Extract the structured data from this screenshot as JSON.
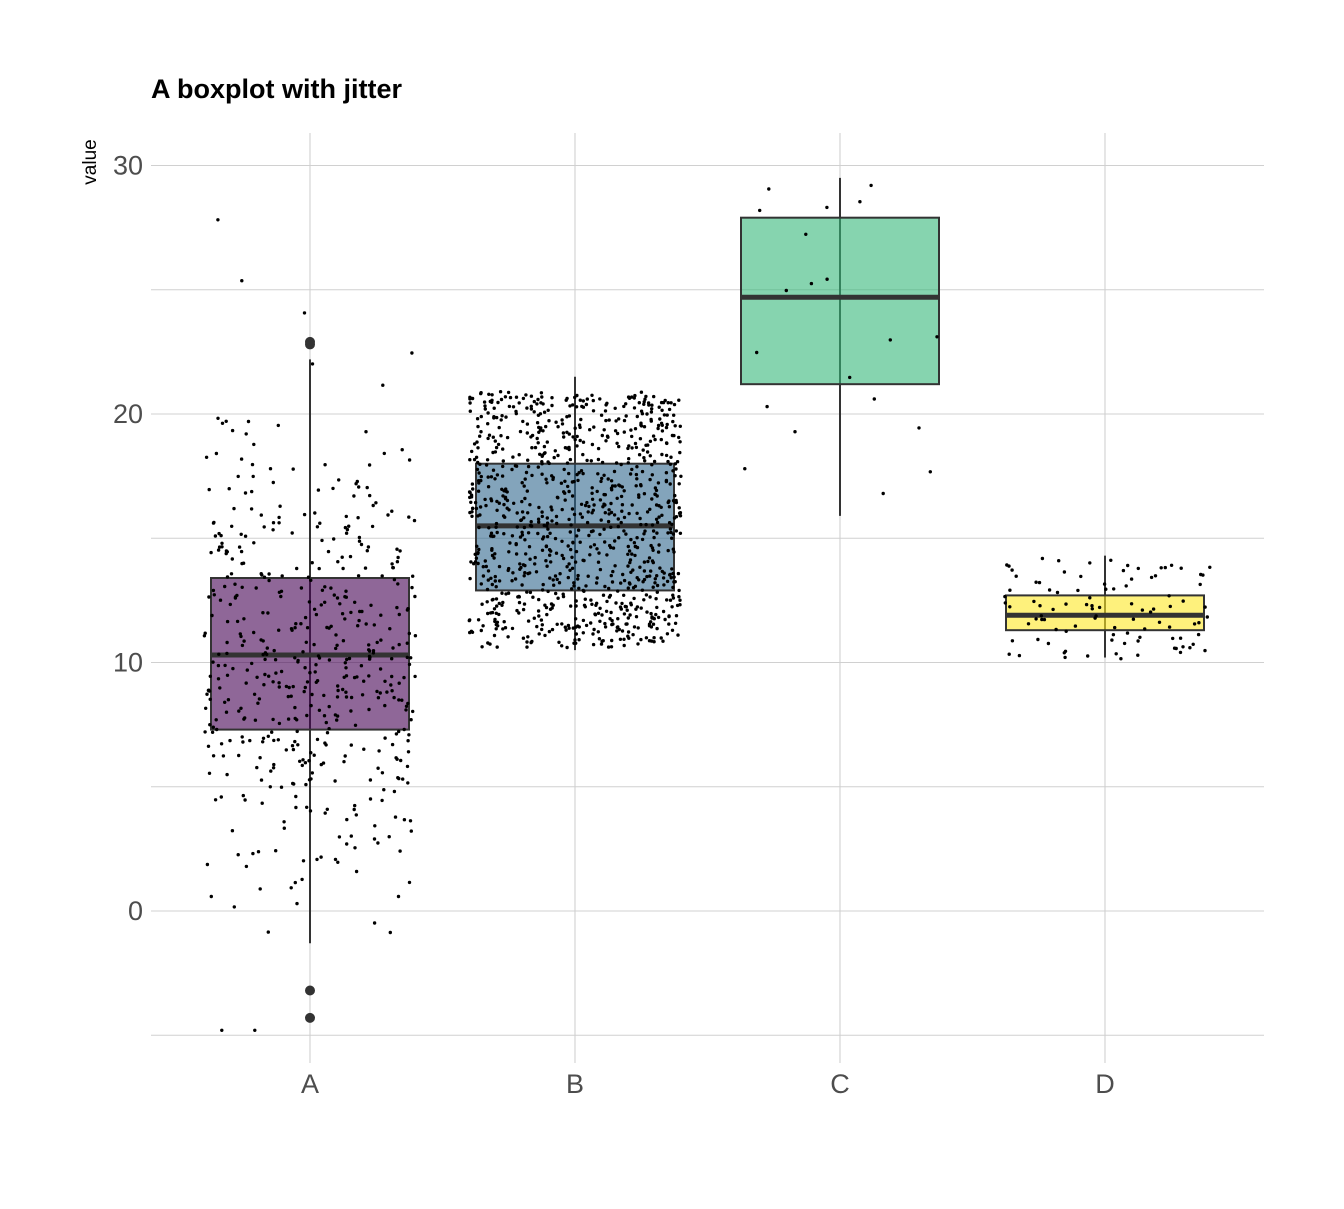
{
  "chart_data": {
    "type": "boxplot",
    "title": "A boxplot with jitter",
    "xlabel": "",
    "ylabel": "value",
    "ylim": [
      -5,
      31.3
    ],
    "y_ticks": [
      0,
      10,
      20,
      30
    ],
    "grid": true,
    "categories": [
      "A",
      "B",
      "C",
      "D"
    ],
    "boxes": [
      {
        "name": "A",
        "color": "#440154",
        "q1": 7.3,
        "median": 10.3,
        "q3": 13.4,
        "whisker_low": -1.3,
        "whisker_high": 22.2,
        "outliers": [
          22.9,
          22.8,
          -3.2,
          -4.3
        ],
        "n_points": 500
      },
      {
        "name": "B",
        "color": "#31688E",
        "q1": 12.9,
        "median": 15.5,
        "q3": 18.0,
        "whisker_low": 10.5,
        "whisker_high": 21.5,
        "outliers": [],
        "n_points": 1000
      },
      {
        "name": "C",
        "color": "#35B779",
        "q1": 21.2,
        "median": 24.7,
        "q3": 27.9,
        "whisker_low": 15.9,
        "whisker_high": 29.5,
        "outliers": [],
        "n_points": 20
      },
      {
        "name": "D",
        "color": "#FDE725",
        "q1": 11.3,
        "median": 11.9,
        "q3": 12.7,
        "whisker_low": 10.2,
        "whisker_high": 14.3,
        "outliers": [],
        "n_points": 100
      }
    ]
  }
}
